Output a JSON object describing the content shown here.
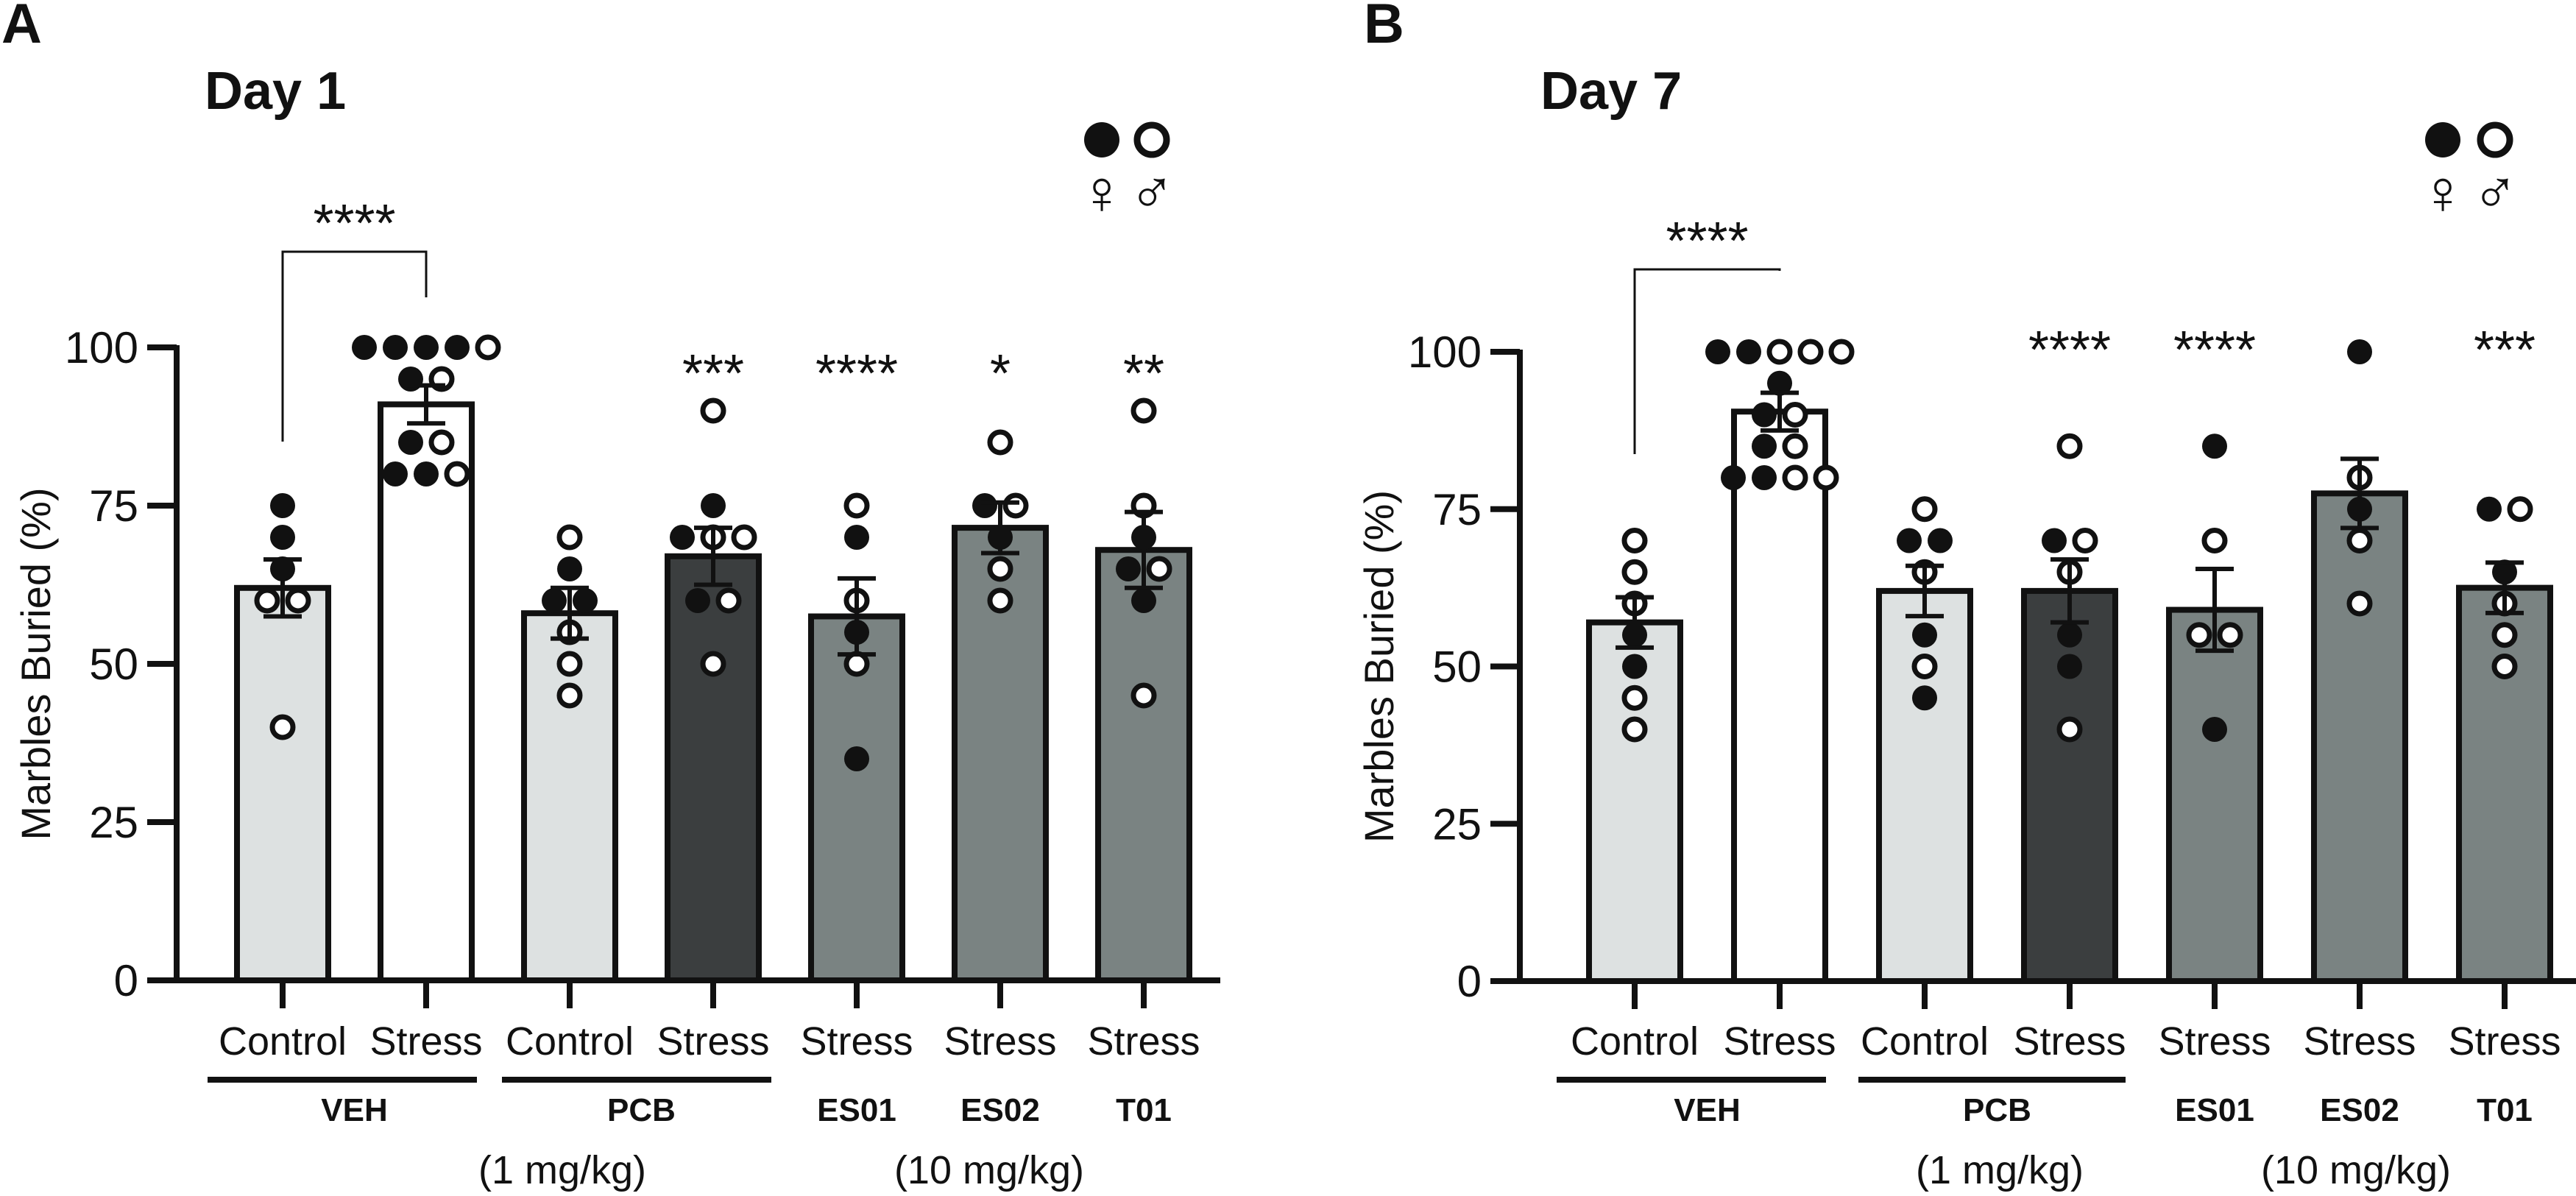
{
  "figure": {
    "marker_legend": {
      "filled_symbol_label": "♀",
      "open_symbol_label": "♂"
    }
  },
  "chart_data": [
    {
      "panel_letter": "A",
      "type": "bar",
      "title": "Day 1",
      "ylabel": "Marbles Buried (%)",
      "ylim": [
        0,
        100
      ],
      "yticks": [
        0,
        25,
        50,
        75,
        100
      ],
      "categories": [
        "Control",
        "Stress",
        "Control",
        "Stress",
        "Stress",
        "Stress",
        "Stress"
      ],
      "bar_colors": [
        "#dde1e1",
        "#ffffff",
        "#dde1e1",
        "#3b3e3f",
        "#7a8382",
        "#7a8382",
        "#7a8382"
      ],
      "values": [
        62,
        91,
        58,
        67,
        57.5,
        71.5,
        68
      ],
      "sem": [
        4.5,
        3,
        4,
        4.5,
        6,
        4,
        6
      ],
      "points": [
        {
          "filled": [
            75,
            70,
            65
          ],
          "open": [
            60,
            60,
            40
          ]
        },
        {
          "filled": [
            100,
            100,
            100,
            100,
            95,
            85,
            80,
            80
          ],
          "open": [
            100,
            95,
            85,
            80
          ]
        },
        {
          "filled": [
            65,
            60,
            60
          ],
          "open": [
            70,
            55,
            50,
            45
          ]
        },
        {
          "filled": [
            75,
            70,
            60
          ],
          "open": [
            90,
            70,
            70,
            60,
            50
          ]
        },
        {
          "filled": [
            70,
            55,
            35
          ],
          "open": [
            75,
            60,
            50
          ]
        },
        {
          "filled": [
            75,
            70
          ],
          "open": [
            85,
            75,
            65,
            60
          ]
        },
        {
          "filled": [
            70,
            65,
            60
          ],
          "open": [
            90,
            75,
            65,
            45
          ]
        }
      ],
      "significance": [
        "",
        "****",
        "",
        "***",
        "****",
        "*",
        "**"
      ],
      "comparison": {
        "label": "****"
      },
      "groups": [
        {
          "label": "VEH",
          "underline": true
        },
        {
          "label": "PCB",
          "underline": true
        },
        {
          "label": "ES01",
          "underline": false
        },
        {
          "label": "ES02",
          "underline": false
        },
        {
          "label": "T01",
          "underline": false
        }
      ],
      "doses": [
        "(1 mg/kg)",
        "(10 mg/kg)"
      ]
    },
    {
      "panel_letter": "B",
      "type": "bar",
      "title": "Day 7",
      "ylabel": "Marbles Buried (%)",
      "ylim": [
        0,
        100
      ],
      "yticks": [
        0,
        25,
        50,
        75,
        100
      ],
      "categories": [
        "Control",
        "Stress",
        "Control",
        "Stress",
        "Stress",
        "Stress",
        "Stress"
      ],
      "bar_colors": [
        "#dde1e1",
        "#ffffff",
        "#dde1e1",
        "#3b3e3f",
        "#7a8382",
        "#7a8382",
        "#7a8382"
      ],
      "values": [
        57,
        90.5,
        62,
        62,
        59,
        77.5,
        62.5
      ],
      "sem": [
        4,
        3,
        4,
        5,
        6.5,
        5.5,
        4
      ],
      "points": [
        {
          "filled": [
            55,
            50
          ],
          "open": [
            70,
            65,
            60,
            45,
            40
          ]
        },
        {
          "filled": [
            100,
            100,
            95,
            90,
            85,
            80,
            80
          ],
          "open": [
            100,
            100,
            100,
            90,
            85,
            80,
            80
          ]
        },
        {
          "filled": [
            70,
            70,
            55,
            45
          ],
          "open": [
            75,
            65,
            50
          ]
        },
        {
          "filled": [
            70,
            55,
            50
          ],
          "open": [
            85,
            70,
            65,
            40
          ]
        },
        {
          "filled": [
            85,
            40
          ],
          "open": [
            70,
            55,
            55
          ]
        },
        {
          "filled": [
            100,
            75
          ],
          "open": [
            80,
            70,
            60
          ]
        },
        {
          "filled": [
            75,
            65
          ],
          "open": [
            75,
            60,
            55,
            50
          ]
        }
      ],
      "significance": [
        "",
        "****",
        "",
        "****",
        "****",
        "",
        "***"
      ],
      "comparison": {
        "label": "****"
      },
      "groups": [
        {
          "label": "VEH",
          "underline": true
        },
        {
          "label": "PCB",
          "underline": true
        },
        {
          "label": "ES01",
          "underline": false
        },
        {
          "label": "ES02",
          "underline": false
        },
        {
          "label": "T01",
          "underline": false
        }
      ],
      "doses": [
        "(1 mg/kg)",
        "(10 mg/kg)"
      ]
    }
  ]
}
